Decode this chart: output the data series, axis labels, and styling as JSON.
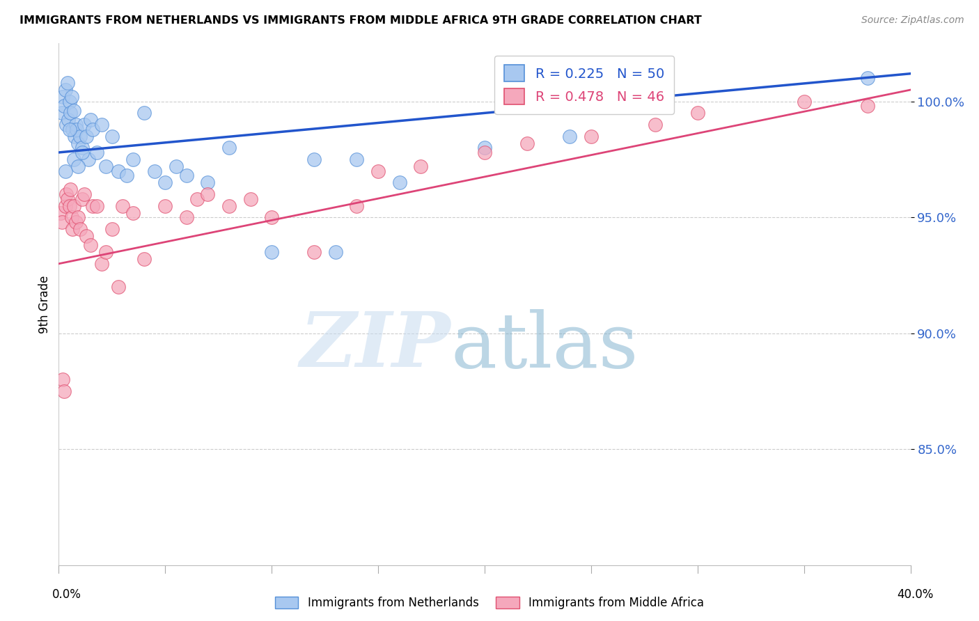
{
  "title": "IMMIGRANTS FROM NETHERLANDS VS IMMIGRANTS FROM MIDDLE AFRICA 9TH GRADE CORRELATION CHART",
  "source": "Source: ZipAtlas.com",
  "ylabel": "9th Grade",
  "blue_label": "Immigrants from Netherlands",
  "pink_label": "Immigrants from Middle Africa",
  "blue_R": 0.225,
  "blue_N": 50,
  "pink_R": 0.478,
  "pink_N": 46,
  "blue_color": "#A8C8F0",
  "pink_color": "#F5A8BC",
  "blue_edge_color": "#5590D8",
  "pink_edge_color": "#E05070",
  "blue_line_color": "#2255CC",
  "pink_line_color": "#DD4477",
  "xlim": [
    0.0,
    40.0
  ],
  "ylim": [
    80.0,
    102.5
  ],
  "yticks": [
    85.0,
    90.0,
    95.0,
    100.0
  ],
  "ytick_labels": [
    "85.0%",
    "90.0%",
    "95.0%",
    "100.0%"
  ],
  "blue_line_x0": 0.0,
  "blue_line_y0": 97.8,
  "blue_line_x1": 40.0,
  "blue_line_y1": 101.2,
  "pink_line_x0": 0.0,
  "pink_line_y0": 93.0,
  "pink_line_x1": 40.0,
  "pink_line_y1": 100.5,
  "blue_x": [
    0.15,
    0.2,
    0.25,
    0.3,
    0.35,
    0.4,
    0.45,
    0.5,
    0.55,
    0.6,
    0.65,
    0.7,
    0.75,
    0.8,
    0.85,
    0.9,
    1.0,
    1.1,
    1.2,
    1.3,
    1.4,
    1.5,
    1.6,
    1.8,
    2.0,
    2.2,
    2.5,
    2.8,
    3.2,
    3.5,
    4.0,
    4.5,
    5.0,
    5.5,
    6.0,
    7.0,
    8.0,
    10.0,
    12.0,
    13.0,
    14.0,
    16.0,
    20.0,
    24.0,
    38.0,
    0.3,
    0.5,
    0.7,
    0.9,
    1.1
  ],
  "blue_y": [
    99.5,
    100.2,
    99.8,
    100.5,
    99.0,
    100.8,
    99.2,
    100.0,
    99.5,
    100.2,
    98.8,
    99.6,
    98.5,
    99.0,
    98.8,
    98.2,
    98.5,
    98.0,
    99.0,
    98.5,
    97.5,
    99.2,
    98.8,
    97.8,
    99.0,
    97.2,
    98.5,
    97.0,
    96.8,
    97.5,
    99.5,
    97.0,
    96.5,
    97.2,
    96.8,
    96.5,
    98.0,
    93.5,
    97.5,
    93.5,
    97.5,
    96.5,
    98.0,
    98.5,
    101.0,
    97.0,
    98.8,
    97.5,
    97.2,
    97.8
  ],
  "pink_x": [
    0.1,
    0.15,
    0.2,
    0.25,
    0.3,
    0.35,
    0.4,
    0.5,
    0.55,
    0.6,
    0.65,
    0.7,
    0.8,
    0.9,
    1.0,
    1.1,
    1.2,
    1.3,
    1.5,
    1.6,
    1.8,
    2.0,
    2.2,
    2.5,
    2.8,
    3.0,
    3.5,
    4.0,
    5.0,
    6.0,
    6.5,
    7.0,
    8.0,
    9.0,
    10.0,
    12.0,
    14.0,
    15.0,
    17.0,
    20.0,
    22.0,
    25.0,
    28.0,
    30.0,
    35.0,
    38.0
  ],
  "pink_y": [
    95.2,
    94.8,
    88.0,
    87.5,
    95.5,
    96.0,
    95.8,
    95.5,
    96.2,
    95.0,
    94.5,
    95.5,
    94.8,
    95.0,
    94.5,
    95.8,
    96.0,
    94.2,
    93.8,
    95.5,
    95.5,
    93.0,
    93.5,
    94.5,
    92.0,
    95.5,
    95.2,
    93.2,
    95.5,
    95.0,
    95.8,
    96.0,
    95.5,
    95.8,
    95.0,
    93.5,
    95.5,
    97.0,
    97.2,
    97.8,
    98.2,
    98.5,
    99.0,
    99.5,
    100.0,
    99.8
  ]
}
